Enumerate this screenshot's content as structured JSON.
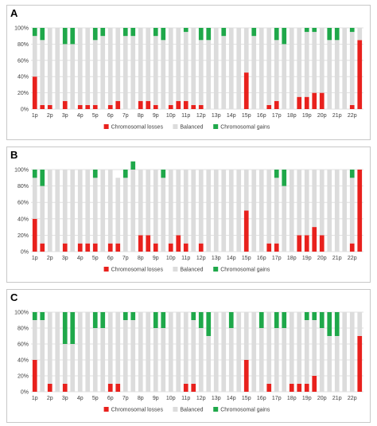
{
  "colors": {
    "loss": "#e8211d",
    "balanced": "#dcdcdc",
    "gain": "#1fa84a",
    "grid": "#d9d9d9",
    "axis_text": "#404040"
  },
  "chart_data": [
    {
      "panel_label": "A",
      "type": "bar",
      "stacked": true,
      "percent_stacked": true,
      "categories": [
        "1p",
        "1q",
        "2p",
        "2q",
        "3p",
        "3q",
        "4p",
        "4q",
        "5p",
        "5q",
        "6p",
        "6q",
        "7p",
        "7q",
        "8p",
        "8q",
        "9p",
        "9q",
        "10p",
        "10q",
        "11p",
        "11q",
        "12p",
        "12q",
        "13p",
        "13q",
        "14p",
        "14q",
        "15p",
        "15q",
        "16p",
        "16q",
        "17p",
        "17q",
        "18p",
        "18q",
        "19p",
        "19q",
        "20p",
        "20q",
        "21p",
        "21q",
        "22p",
        "22q"
      ],
      "x_tick_labels": [
        "1p",
        "2p",
        "3p",
        "4p",
        "5p",
        "6p",
        "7p",
        "8p",
        "9p",
        "10p",
        "11p",
        "12p",
        "13p",
        "14p",
        "15p",
        "16p",
        "17p",
        "18p",
        "19p",
        "20p",
        "21p",
        "22p"
      ],
      "ylim": [
        0,
        100
      ],
      "y_ticks": [
        "0%",
        "20%",
        "40%",
        "60%",
        "80%",
        "100%"
      ],
      "grid": true,
      "legend_position": "bottom",
      "series": [
        {
          "name": "Chromosomal losses",
          "values": [
            40,
            5,
            5,
            0,
            10,
            0,
            5,
            5,
            5,
            0,
            5,
            10,
            0,
            0,
            10,
            10,
            5,
            0,
            5,
            10,
            10,
            5,
            5,
            0,
            0,
            0,
            0,
            0,
            45,
            0,
            0,
            5,
            10,
            0,
            0,
            15,
            15,
            20,
            20,
            0,
            0,
            0,
            5,
            85
          ]
        },
        {
          "name": "Balanced",
          "values": [
            50,
            80,
            95,
            100,
            70,
            80,
            95,
            95,
            80,
            90,
            95,
            90,
            90,
            90,
            90,
            90,
            85,
            85,
            95,
            90,
            85,
            95,
            80,
            85,
            100,
            90,
            100,
            100,
            55,
            90,
            100,
            95,
            75,
            80,
            100,
            85,
            80,
            75,
            80,
            85,
            85,
            100,
            90,
            15
          ]
        },
        {
          "name": "Chromosomal gains",
          "values": [
            10,
            15,
            0,
            0,
            20,
            20,
            0,
            0,
            15,
            10,
            0,
            0,
            10,
            10,
            0,
            0,
            10,
            15,
            0,
            0,
            5,
            0,
            15,
            15,
            0,
            10,
            0,
            0,
            0,
            10,
            0,
            0,
            15,
            20,
            0,
            0,
            5,
            5,
            0,
            15,
            15,
            0,
            5,
            0
          ]
        }
      ]
    },
    {
      "panel_label": "B",
      "type": "bar",
      "stacked": true,
      "percent_stacked": true,
      "categories": [
        "1p",
        "1q",
        "2p",
        "2q",
        "3p",
        "3q",
        "4p",
        "4q",
        "5p",
        "5q",
        "6p",
        "6q",
        "7p",
        "7q",
        "8p",
        "8q",
        "9p",
        "9q",
        "10p",
        "10q",
        "11p",
        "11q",
        "12p",
        "12q",
        "13p",
        "13q",
        "14p",
        "14q",
        "15p",
        "15q",
        "16p",
        "16q",
        "17p",
        "17q",
        "18p",
        "18q",
        "19p",
        "19q",
        "20p",
        "20q",
        "21p",
        "21q",
        "22p",
        "22q"
      ],
      "x_tick_labels": [
        "1p",
        "2p",
        "3p",
        "4p",
        "5p",
        "6p",
        "7p",
        "8p",
        "9p",
        "10p",
        "11p",
        "12p",
        "13p",
        "14p",
        "15p",
        "16p",
        "17p",
        "18p",
        "19p",
        "20p",
        "21p",
        "22p"
      ],
      "ylim": [
        0,
        100
      ],
      "y_ticks": [
        "0%",
        "20%",
        "40%",
        "60%",
        "80%",
        "100%"
      ],
      "grid": true,
      "legend_position": "bottom",
      "series": [
        {
          "name": "Chromosomal losses",
          "values": [
            40,
            10,
            0,
            0,
            10,
            0,
            10,
            10,
            10,
            0,
            10,
            10,
            0,
            0,
            20,
            20,
            10,
            0,
            10,
            20,
            10,
            0,
            10,
            0,
            0,
            0,
            0,
            0,
            50,
            0,
            0,
            10,
            10,
            0,
            0,
            20,
            20,
            30,
            20,
            0,
            0,
            0,
            10,
            100
          ]
        },
        {
          "name": "Balanced",
          "values": [
            50,
            70,
            100,
            100,
            90,
            100,
            90,
            90,
            80,
            100,
            90,
            80,
            90,
            100,
            80,
            80,
            90,
            90,
            90,
            80,
            90,
            100,
            90,
            100,
            100,
            100,
            100,
            100,
            50,
            100,
            100,
            90,
            80,
            80,
            100,
            80,
            80,
            70,
            80,
            100,
            100,
            100,
            80,
            0
          ]
        },
        {
          "name": "Chromosomal gains",
          "values": [
            10,
            20,
            0,
            0,
            0,
            0,
            0,
            0,
            10,
            0,
            0,
            0,
            10,
            10,
            0,
            0,
            0,
            10,
            0,
            0,
            0,
            0,
            0,
            0,
            0,
            0,
            0,
            0,
            0,
            0,
            0,
            0,
            10,
            20,
            0,
            0,
            0,
            0,
            0,
            0,
            0,
            0,
            10,
            0
          ]
        }
      ]
    },
    {
      "panel_label": "C",
      "type": "bar",
      "stacked": true,
      "percent_stacked": true,
      "categories": [
        "1p",
        "1q",
        "2p",
        "2q",
        "3p",
        "3q",
        "4p",
        "4q",
        "5p",
        "5q",
        "6p",
        "6q",
        "7p",
        "7q",
        "8p",
        "8q",
        "9p",
        "9q",
        "10p",
        "10q",
        "11p",
        "11q",
        "12p",
        "12q",
        "13p",
        "13q",
        "14p",
        "14q",
        "15p",
        "15q",
        "16p",
        "16q",
        "17p",
        "17q",
        "18p",
        "18q",
        "19p",
        "19q",
        "20p",
        "20q",
        "21p",
        "21q",
        "22p",
        "22q"
      ],
      "x_tick_labels": [
        "1p",
        "2p",
        "3p",
        "4p",
        "5p",
        "6p",
        "7p",
        "8p",
        "9p",
        "10p",
        "11p",
        "12p",
        "13p",
        "14p",
        "15p",
        "16p",
        "17p",
        "18p",
        "19p",
        "20p",
        "21p",
        "22p"
      ],
      "ylim": [
        0,
        100
      ],
      "y_ticks": [
        "0%",
        "20%",
        "40%",
        "60%",
        "80%",
        "100%"
      ],
      "grid": true,
      "legend_position": "bottom",
      "series": [
        {
          "name": "Chromosomal losses",
          "values": [
            40,
            0,
            10,
            0,
            10,
            0,
            0,
            0,
            0,
            0,
            10,
            10,
            0,
            0,
            0,
            0,
            0,
            0,
            0,
            0,
            10,
            10,
            0,
            0,
            0,
            0,
            0,
            0,
            40,
            0,
            0,
            10,
            0,
            0,
            10,
            10,
            10,
            20,
            0,
            0,
            0,
            0,
            0,
            70
          ]
        },
        {
          "name": "Balanced",
          "values": [
            50,
            90,
            90,
            100,
            50,
            60,
            100,
            100,
            80,
            80,
            90,
            90,
            90,
            90,
            100,
            100,
            80,
            80,
            100,
            100,
            90,
            80,
            80,
            70,
            100,
            100,
            80,
            100,
            60,
            100,
            80,
            90,
            80,
            80,
            90,
            90,
            80,
            70,
            80,
            70,
            70,
            100,
            100,
            30
          ]
        },
        {
          "name": "Chromosomal gains",
          "values": [
            10,
            10,
            0,
            0,
            40,
            40,
            0,
            0,
            20,
            20,
            0,
            0,
            10,
            10,
            0,
            0,
            20,
            20,
            0,
            0,
            0,
            10,
            20,
            30,
            0,
            0,
            20,
            0,
            0,
            0,
            20,
            0,
            20,
            20,
            0,
            0,
            10,
            10,
            20,
            30,
            30,
            0,
            0,
            0
          ]
        }
      ]
    }
  ]
}
